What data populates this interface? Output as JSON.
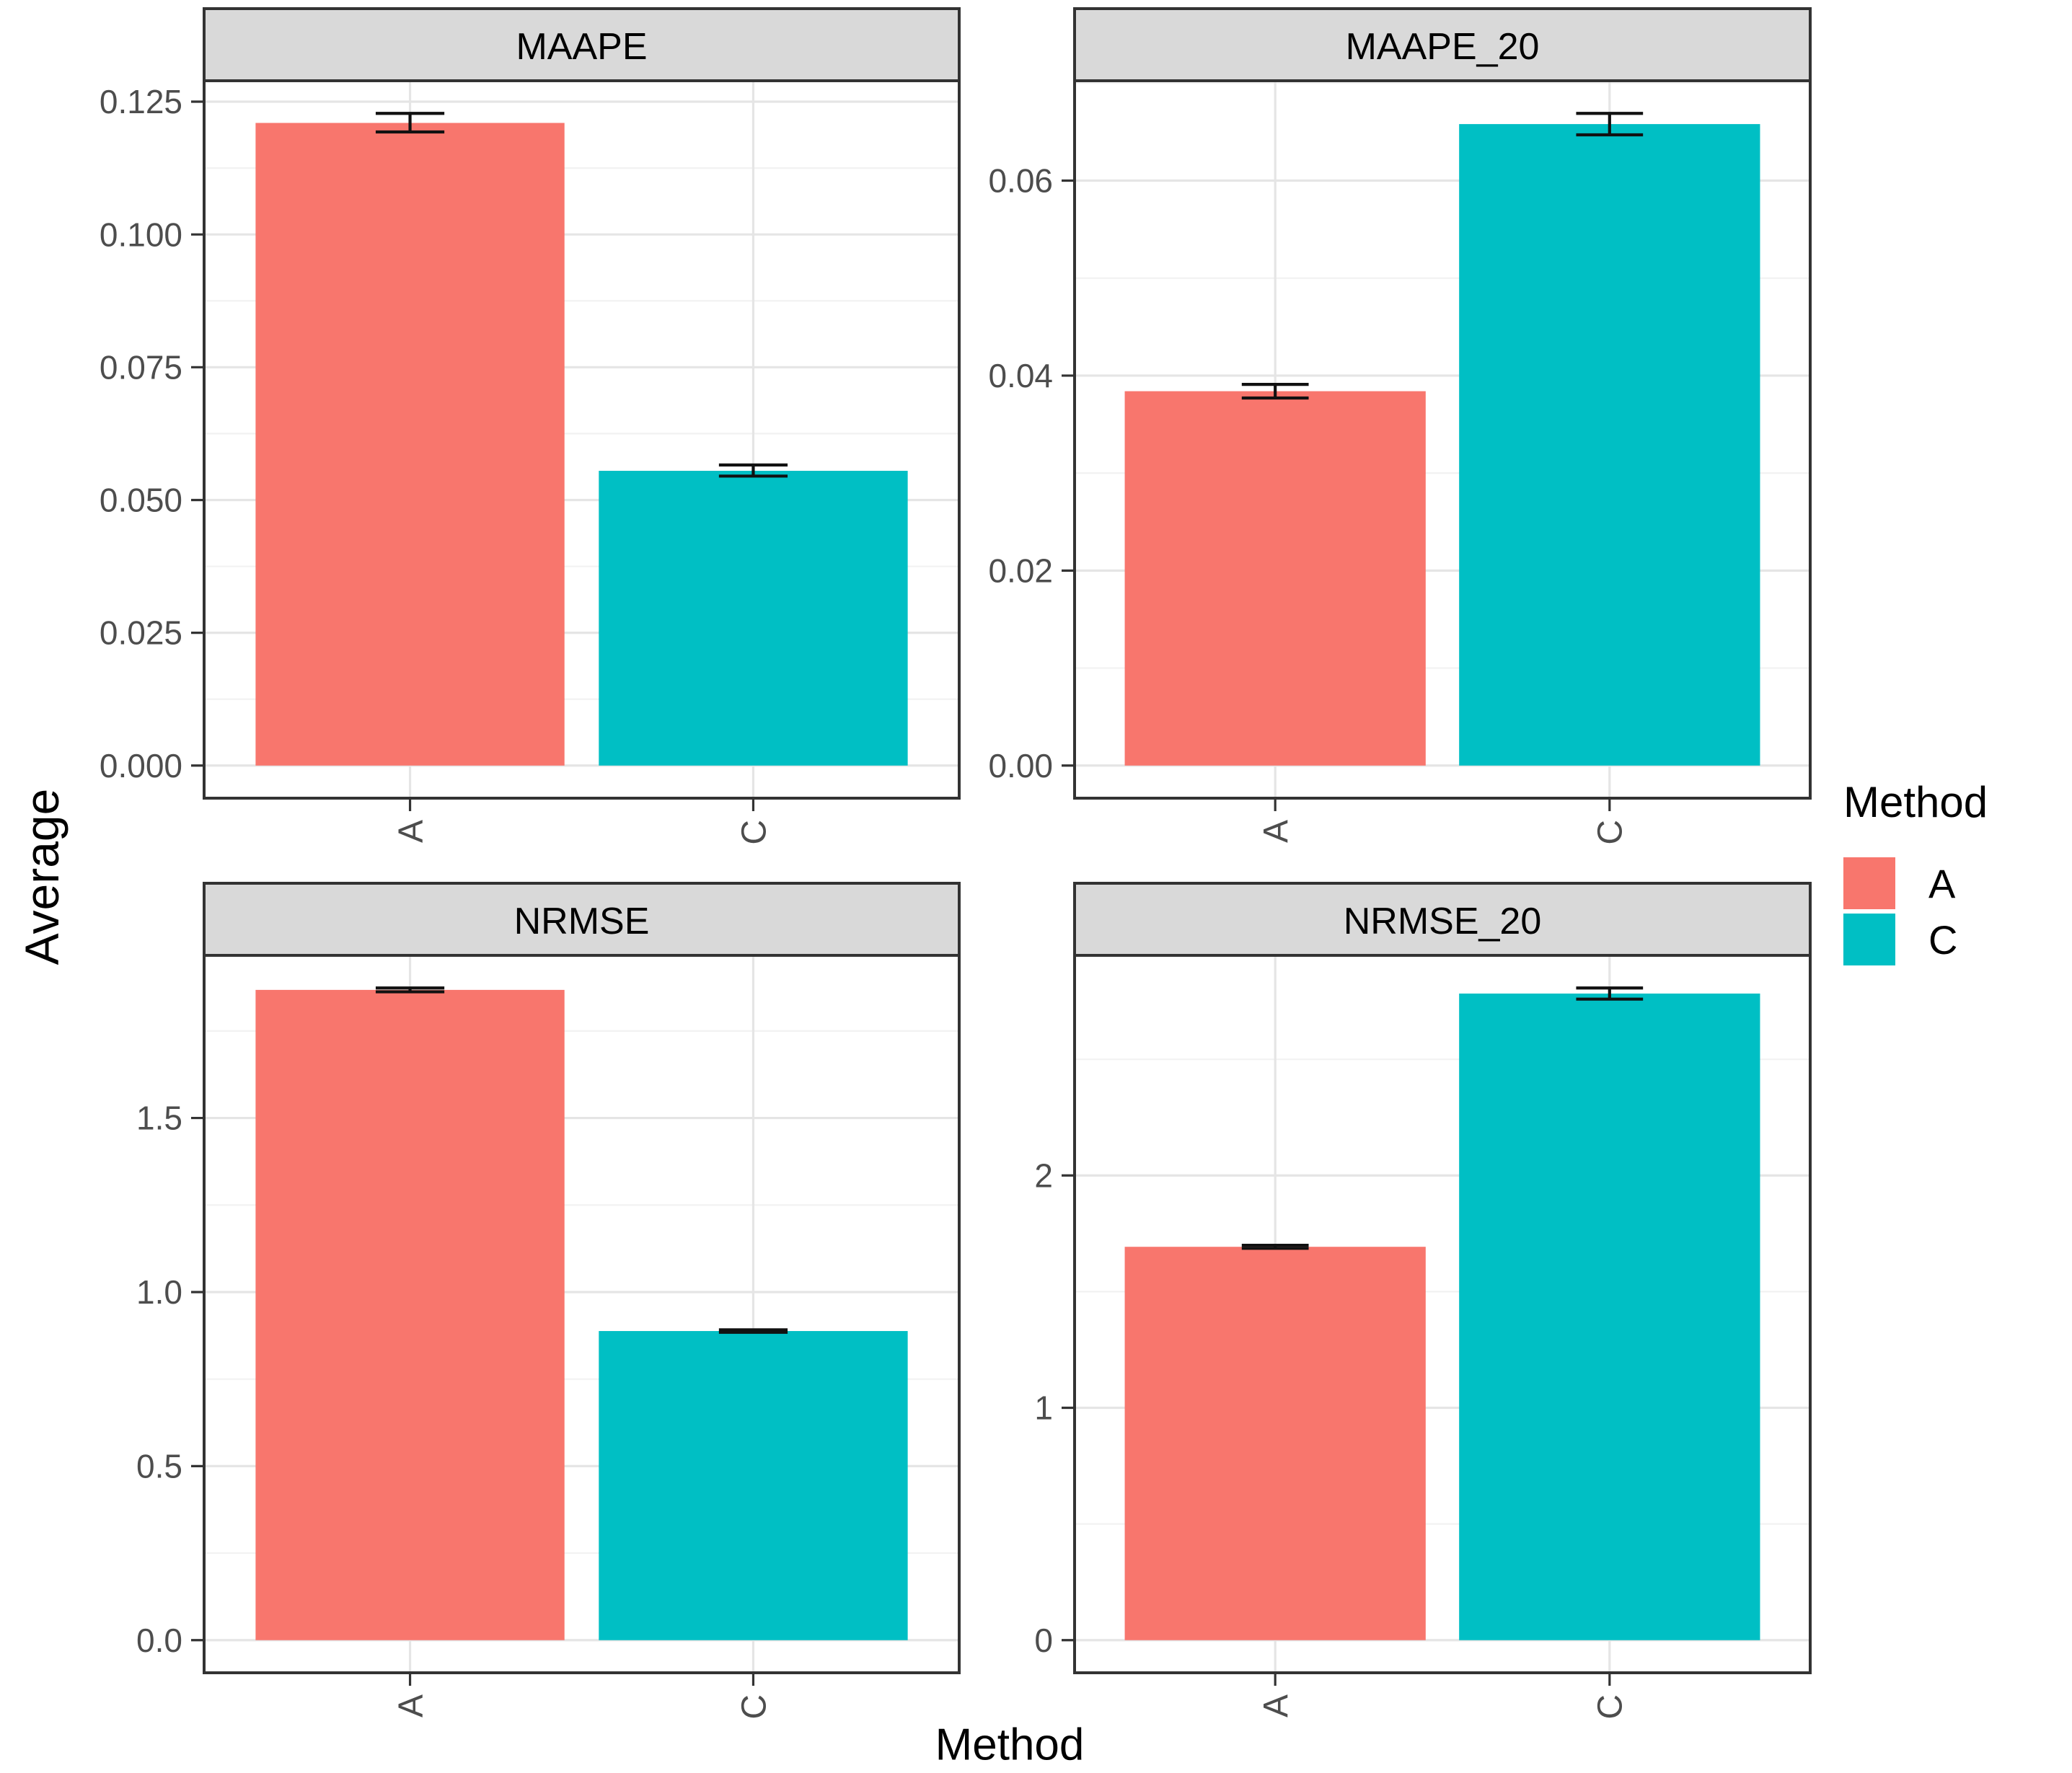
{
  "figure": {
    "y_axis_title": "Average",
    "x_axis_title": "Method"
  },
  "legend": {
    "title": "Method",
    "position": "right",
    "entries": [
      {
        "label": "A",
        "color": "#F8766D"
      },
      {
        "label": "C",
        "color": "#00BFC4"
      }
    ]
  },
  "style": {
    "strip_background": "#D9D9D9",
    "panel_background": "#FFFFFF",
    "panel_border": "#333333",
    "grid_major": "#E5E5E5",
    "grid_minor": "#F2F2F2",
    "tick_label_color": "#4D4D4D",
    "errorbar_color": "#111111"
  },
  "chart_data": {
    "type": "bar",
    "categories": [
      "A",
      "C"
    ],
    "xlabel": "Method",
    "ylabel": "Average",
    "legend_title": "Method",
    "legend_position": "right",
    "grid": true,
    "series_colors": {
      "A": "#F8766D",
      "C": "#00BFC4"
    },
    "facets": [
      {
        "title": "MAAPE",
        "row": 0,
        "col": 0,
        "categories": [
          "A",
          "C"
        ],
        "values": [
          0.121,
          0.0555
        ],
        "error_low": [
          0.1193,
          0.0545
        ],
        "error_high": [
          0.1228,
          0.0566
        ],
        "ylim": [
          -0.00614,
          0.12894
        ],
        "yticks": [
          0,
          0.025,
          0.05,
          0.075,
          0.1,
          0.125
        ],
        "ytick_labels": [
          "0.000",
          "0.025",
          "0.050",
          "0.075",
          "0.100",
          "0.125"
        ],
        "yminor": [
          0.0125,
          0.0375,
          0.0625,
          0.0875,
          0.1125
        ]
      },
      {
        "title": "MAAPE_20",
        "row": 0,
        "col": 1,
        "categories": [
          "A",
          "C"
        ],
        "values": [
          0.0384,
          0.0658
        ],
        "error_low": [
          0.0377,
          0.0647
        ],
        "error_high": [
          0.0391,
          0.0669
        ],
        "ylim": [
          -0.003345,
          0.070245
        ],
        "yticks": [
          0,
          0.02,
          0.04,
          0.06
        ],
        "ytick_labels": [
          "0.00",
          "0.02",
          "0.04",
          "0.06"
        ],
        "yminor": [
          0.01,
          0.03,
          0.05,
          0.07
        ]
      },
      {
        "title": "NRMSE",
        "row": 1,
        "col": 0,
        "categories": [
          "A",
          "C"
        ],
        "values": [
          1.868,
          0.888
        ],
        "error_low": [
          1.8625,
          0.8845
        ],
        "error_high": [
          1.8735,
          0.8915
        ],
        "ylim": [
          -0.0937,
          1.9672
        ],
        "yticks": [
          0,
          0.5,
          1.0,
          1.5
        ],
        "ytick_labels": [
          "0.0",
          "0.5",
          "1.0",
          "1.5"
        ],
        "yminor": [
          0.25,
          0.75,
          1.25,
          1.75
        ]
      },
      {
        "title": "NRMSE_20",
        "row": 1,
        "col": 1,
        "categories": [
          "A",
          "C"
        ],
        "values": [
          1.693,
          2.783
        ],
        "error_low": [
          1.6865,
          2.759
        ],
        "error_high": [
          1.6995,
          2.807
        ],
        "ylim": [
          -0.1404,
          2.9474
        ],
        "yticks": [
          0,
          1,
          2
        ],
        "ytick_labels": [
          "0",
          "1",
          "2"
        ],
        "yminor": [
          0.5,
          1.5,
          2.5
        ]
      }
    ]
  }
}
